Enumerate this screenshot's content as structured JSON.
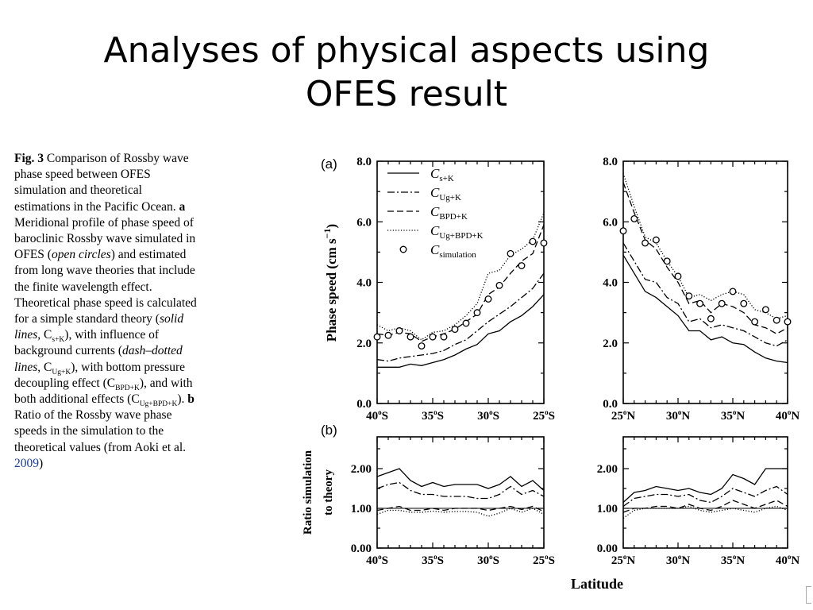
{
  "slide": {
    "title_line1": "Analyses of physical aspects using",
    "title_line2": "OFES result"
  },
  "caption": {
    "fig_label": "Fig. 3",
    "intro": "Comparison of Rossby wave phase speed between OFES simulation and theoretical estimations in the Pacific Ocean.",
    "a_label": "a",
    "a_text_1": "Meridional profile of phase speed of baroclinic Rossby wave simulated in OFES (",
    "a_italic_1": "open circles",
    "a_text_2": ") and estimated from long wave theories that include the finite wavelength effect. Theoretical phase speed is calculated for a simple standard theory (",
    "a_italic_2": "solid lines",
    "a_text_3": ", C",
    "sub_sk": "s+K",
    "a_text_4": "), with influence of background currents (",
    "a_italic_3": "dash–dotted lines",
    "a_text_5": ", C",
    "sub_ugk": "Ug+K",
    "a_text_6": "), with bottom pressure decoupling effect (C",
    "sub_bpdk": "BPD+K",
    "a_text_7": "), and with both additional effects (C",
    "sub_ugbpdk": "Ug+BPD+K",
    "a_text_8": ").",
    "b_label": "b",
    "b_text": "Ratio of the Rossby wave phase speeds in the simulation to the theoretical values (from Aoki et al.",
    "b_ref": "2009",
    "b_end": ")"
  },
  "chart_data": {
    "type": "line",
    "xlabel": "Latitude",
    "panel_labels": [
      "(a)",
      "(b)"
    ],
    "legend": [
      {
        "main": "C",
        "sub": "s+K",
        "style": "solid"
      },
      {
        "main": "C",
        "sub": "Ug+K",
        "style": "dashdot"
      },
      {
        "main": "C",
        "sub": "BPD+K",
        "style": "dashed"
      },
      {
        "main": "C",
        "sub": "Ug+BPD+K",
        "style": "dotted"
      },
      {
        "main": "C",
        "sub": "simulation",
        "style": "circle"
      }
    ],
    "panels": [
      {
        "id": "a-south",
        "ylabel_text": "Phase  speed  (cm  s",
        "ylabel_sup": "−1",
        "ylabel_end": ")",
        "ylim": [
          0,
          8
        ],
        "yticks": [
          "0.0",
          "2.0",
          "4.0",
          "6.0",
          "8.0"
        ],
        "ytick_values": [
          0,
          2,
          4,
          6,
          8
        ],
        "xlim": [
          -40,
          -25
        ],
        "xtick_values": [
          -40,
          -35,
          -30,
          -25
        ],
        "xtick_labels": [
          "40",
          "35",
          "30",
          "25"
        ],
        "xtick_hemi": "S",
        "x": [
          -40,
          -39,
          -38,
          -37,
          -36,
          -35,
          -34,
          -33,
          -32,
          -31,
          -30,
          -29,
          -28,
          -27,
          -26,
          -25
        ],
        "series": [
          {
            "key": "s+K",
            "values": [
              1.2,
              1.2,
              1.2,
              1.3,
              1.25,
              1.35,
              1.45,
              1.6,
              1.8,
              1.95,
              2.3,
              2.4,
              2.7,
              2.9,
              3.2,
              3.6
            ]
          },
          {
            "key": "Ug+K",
            "values": [
              1.45,
              1.4,
              1.5,
              1.55,
              1.6,
              1.65,
              1.75,
              1.95,
              2.1,
              2.4,
              2.7,
              2.95,
              3.2,
              3.5,
              3.8,
              4.3
            ]
          },
          {
            "key": "BPD+K",
            "values": [
              2.3,
              2.25,
              2.35,
              2.3,
              2.05,
              2.2,
              2.3,
              2.45,
              2.7,
              2.95,
              3.6,
              3.85,
              4.3,
              4.7,
              4.95,
              5.9
            ]
          },
          {
            "key": "Ug+BPD+K",
            "values": [
              2.6,
              2.4,
              2.5,
              2.4,
              2.1,
              2.35,
              2.4,
              2.6,
              2.9,
              3.3,
              4.3,
              4.4,
              4.9,
              5.1,
              5.4,
              6.3
            ]
          },
          {
            "key": "simulation",
            "values": [
              2.2,
              2.25,
              2.4,
              2.2,
              1.9,
              2.2,
              2.2,
              2.45,
              2.65,
              3.0,
              3.45,
              3.9,
              4.95,
              4.55,
              5.35,
              5.3
            ]
          }
        ]
      },
      {
        "id": "a-north",
        "ylim": [
          0,
          8
        ],
        "yticks": [
          "0.0",
          "2.0",
          "4.0",
          "6.0",
          "8.0"
        ],
        "ytick_values": [
          0,
          2,
          4,
          6,
          8
        ],
        "xlim": [
          25,
          40
        ],
        "xtick_values": [
          25,
          30,
          35,
          40
        ],
        "xtick_labels": [
          "25",
          "30",
          "35",
          "40"
        ],
        "xtick_hemi": "N",
        "x": [
          25,
          26,
          27,
          28,
          29,
          30,
          31,
          32,
          33,
          34,
          35,
          36,
          37,
          38,
          39,
          40
        ],
        "series": [
          {
            "key": "s+K",
            "values": [
              4.9,
              4.3,
              3.7,
              3.5,
              3.2,
              2.9,
              2.4,
              2.4,
              2.1,
              2.2,
              2.0,
              1.95,
              1.7,
              1.5,
              1.4,
              1.35
            ]
          },
          {
            "key": "Ug+K",
            "values": [
              5.3,
              4.7,
              4.1,
              4.0,
              3.5,
              3.3,
              2.7,
              2.8,
              2.5,
              2.6,
              2.5,
              2.4,
              2.2,
              2.0,
              1.9,
              2.1
            ]
          },
          {
            "key": "BPD+K",
            "values": [
              7.3,
              6.3,
              5.4,
              5.1,
              4.5,
              4.0,
              3.3,
              3.4,
              3.0,
              3.3,
              3.2,
              3.0,
              2.6,
              2.5,
              2.3,
              2.5
            ]
          },
          {
            "key": "Ug+BPD+K",
            "values": [
              7.6,
              6.5,
              5.5,
              5.3,
              4.7,
              4.2,
              3.5,
              3.6,
              3.4,
              3.6,
              3.7,
              3.6,
              3.1,
              3.0,
              2.8,
              2.9
            ]
          },
          {
            "key": "simulation",
            "values": [
              5.7,
              6.1,
              5.3,
              5.4,
              4.7,
              4.2,
              3.55,
              3.3,
              2.8,
              3.3,
              3.7,
              3.3,
              2.7,
              3.1,
              2.75,
              2.7
            ]
          }
        ]
      },
      {
        "id": "b-south",
        "ylabel_text": "Ratio  simulation",
        "ylabel_text2": "to theory",
        "ylim": [
          0,
          2.8
        ],
        "yticks": [
          "0.00",
          "1.00",
          "2.00"
        ],
        "ytick_values": [
          0,
          1,
          2
        ],
        "xlim": [
          -40,
          -25
        ],
        "xtick_values": [
          -40,
          -35,
          -30,
          -25
        ],
        "xtick_labels": [
          "40",
          "35",
          "30",
          "25"
        ],
        "xtick_hemi": "S",
        "x": [
          -40,
          -39,
          -38,
          -37,
          -36,
          -35,
          -34,
          -33,
          -32,
          -31,
          -30,
          -29,
          -28,
          -27,
          -26,
          -25
        ],
        "series": [
          {
            "key": "s+K",
            "values": [
              1.8,
              1.9,
              2.0,
              1.7,
              1.55,
              1.65,
              1.55,
              1.6,
              1.6,
              1.6,
              1.5,
              1.6,
              1.8,
              1.55,
              1.7,
              1.45
            ]
          },
          {
            "key": "Ug+K",
            "values": [
              1.5,
              1.6,
              1.65,
              1.45,
              1.35,
              1.35,
              1.3,
              1.3,
              1.3,
              1.25,
              1.25,
              1.35,
              1.55,
              1.35,
              1.45,
              1.3
            ]
          },
          {
            "key": "BPD+K",
            "values": [
              0.95,
              1.0,
              1.05,
              0.95,
              0.95,
              1.0,
              0.95,
              1.0,
              1.0,
              1.0,
              0.95,
              1.0,
              1.05,
              0.97,
              1.05,
              0.92
            ]
          },
          {
            "key": "Ug+BPD+K",
            "values": [
              0.85,
              0.95,
              0.95,
              0.9,
              0.9,
              0.93,
              0.9,
              0.92,
              0.92,
              0.9,
              0.8,
              0.88,
              1.0,
              0.9,
              1.0,
              0.85
            ]
          }
        ]
      },
      {
        "id": "b-north",
        "ylim": [
          0,
          2.8
        ],
        "yticks": [
          "0.00",
          "1.00",
          "2.00"
        ],
        "ytick_values": [
          0,
          1,
          2
        ],
        "xlim": [
          25,
          40
        ],
        "xtick_values": [
          25,
          30,
          35,
          40
        ],
        "xtick_labels": [
          "25",
          "30",
          "35",
          "40"
        ],
        "xtick_hemi": "N",
        "x": [
          25,
          26,
          27,
          28,
          29,
          30,
          31,
          32,
          33,
          34,
          35,
          36,
          37,
          38,
          39,
          40
        ],
        "series": [
          {
            "key": "s+K",
            "values": [
              1.15,
              1.4,
              1.45,
              1.55,
              1.5,
              1.45,
              1.5,
              1.4,
              1.35,
              1.5,
              1.85,
              1.75,
              1.6,
              2.0,
              2.0,
              2.0
            ]
          },
          {
            "key": "Ug+K",
            "values": [
              1.05,
              1.25,
              1.3,
              1.35,
              1.35,
              1.3,
              1.35,
              1.2,
              1.15,
              1.3,
              1.5,
              1.4,
              1.3,
              1.45,
              1.55,
              1.35
            ]
          },
          {
            "key": "BPD+K",
            "values": [
              0.9,
              1.0,
              1.0,
              1.05,
              1.05,
              1.0,
              1.1,
              1.0,
              0.95,
              1.05,
              1.2,
              1.1,
              1.0,
              1.1,
              1.2,
              1.05
            ]
          },
          {
            "key": "Ug+BPD+K",
            "values": [
              0.75,
              0.95,
              1.0,
              1.0,
              1.0,
              1.0,
              1.05,
              0.95,
              0.9,
              0.95,
              1.0,
              0.95,
              0.9,
              1.0,
              1.05,
              0.95
            ]
          }
        ]
      }
    ]
  }
}
